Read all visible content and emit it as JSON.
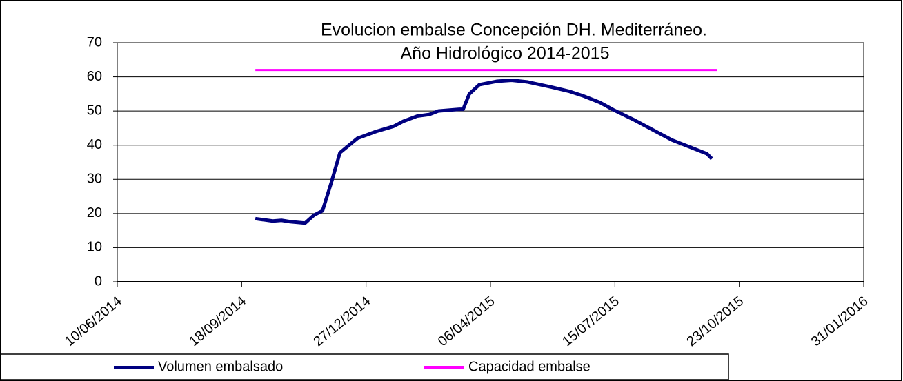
{
  "chart_data": {
    "type": "line",
    "title": [
      "Evolucion embalse Concepción DH. Mediterráneo.",
      "Año Hidrológico 2014-2015"
    ],
    "series": [
      {
        "name": "Volumen embalsado",
        "color": "#000080",
        "x": [
          "29/09/2014",
          "13/10/2014",
          "20/10/2014",
          "27/10/2014",
          "08/11/2014",
          "15/11/2014",
          "22/11/2014",
          "29/11/2014",
          "06/12/2014",
          "20/12/2014",
          "04/01/2015",
          "18/01/2015",
          "26/01/2015",
          "06/02/2015",
          "16/02/2015",
          "23/02/2015",
          "12/03/2015",
          "15/03/2015",
          "20/03/2015",
          "28/03/2015",
          "11/04/2015",
          "23/04/2015",
          "06/05/2015",
          "25/05/2015",
          "08/06/2015",
          "19/06/2015",
          "03/07/2015",
          "14/07/2015",
          "31/07/2015",
          "17/08/2015",
          "30/08/2015",
          "13/09/2015",
          "27/09/2015",
          "01/10/2015"
        ],
        "values": [
          18.5,
          17.8,
          18.0,
          17.6,
          17.2,
          19.5,
          20.8,
          29,
          37.8,
          42,
          44,
          45.5,
          47,
          48.5,
          49,
          50,
          50.5,
          50.5,
          55,
          57.7,
          58.7,
          59,
          58.5,
          57,
          55.8,
          54.5,
          52.5,
          50.3,
          47.3,
          44,
          41.5,
          39.5,
          37.5,
          36
        ]
      },
      {
        "name": "Capacidad embalse",
        "color": "#ff00ff",
        "x": [
          "29/09/2014",
          "05/10/2015"
        ],
        "values": [
          62,
          62
        ]
      }
    ],
    "xlim": [
      "10/06/2014",
      "31/01/2016"
    ],
    "xticks": [
      "10/06/2014",
      "18/09/2014",
      "27/12/2014",
      "06/04/2015",
      "15/07/2015",
      "23/10/2015",
      "31/01/2016"
    ],
    "ylim": [
      0,
      70
    ],
    "yticks": [
      0,
      10,
      20,
      30,
      40,
      50,
      60,
      70
    ],
    "grid": true,
    "legend": "bottom"
  }
}
